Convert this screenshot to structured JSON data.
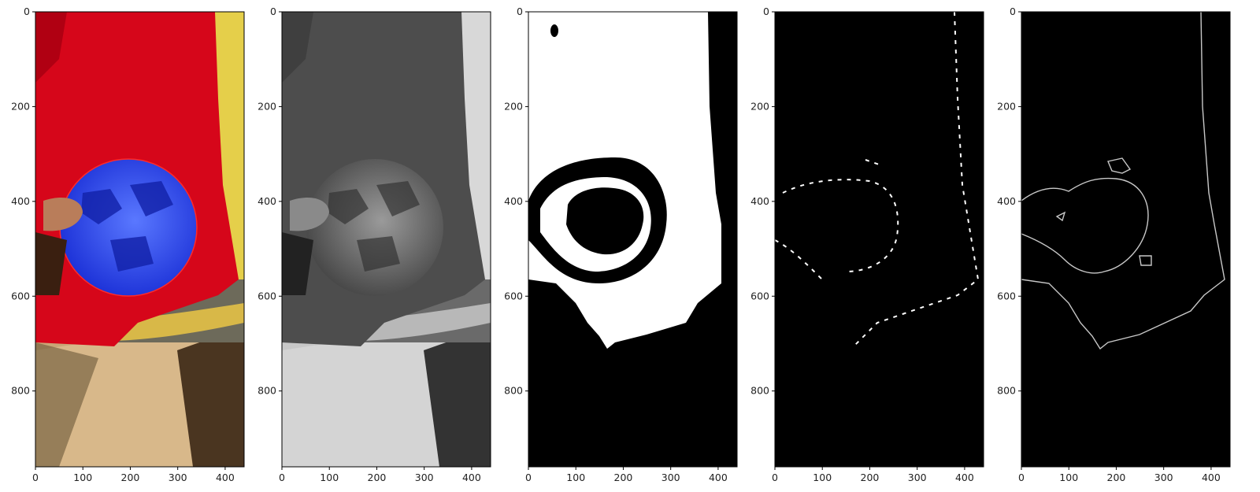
{
  "figure": {
    "panels": [
      {
        "id": "color-photo"
      },
      {
        "id": "grayscale-photo"
      },
      {
        "id": "binary-mask"
      },
      {
        "id": "sparse-edge-map"
      },
      {
        "id": "contour-map"
      }
    ],
    "axes": {
      "x_range": [
        0,
        440
      ],
      "y_range": [
        960,
        0
      ],
      "x_ticks": [
        0,
        100,
        200,
        300,
        400
      ],
      "y_ticks": [
        0,
        200,
        400,
        600,
        800
      ],
      "x_tick_labels": [
        "0",
        "100",
        "200",
        "300",
        "400"
      ],
      "y_tick_labels": [
        "0",
        "200",
        "400",
        "600",
        "800"
      ]
    },
    "colors": {
      "shirt": "#d6061a",
      "ball": "#2f4fff",
      "wall": "#e5cf4a",
      "floor": "#c9a676",
      "background": "#000000",
      "foreground": "#ffffff"
    }
  }
}
